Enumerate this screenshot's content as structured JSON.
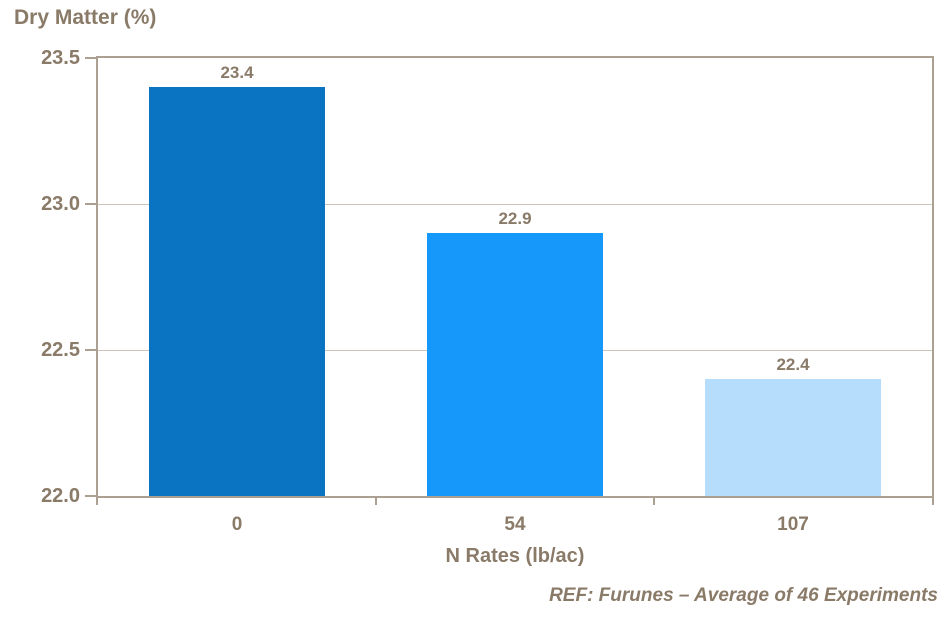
{
  "chart_data": {
    "type": "bar",
    "title": "Dry Matter (%)",
    "xlabel": "N Rates (lb/ac)",
    "ylabel": "Dry Matter (%)",
    "categories": [
      "0",
      "54",
      "107"
    ],
    "values": [
      23.4,
      22.9,
      22.4
    ],
    "data_labels": [
      "23.4",
      "22.9",
      "22.4"
    ],
    "bar_colors": [
      "#0a73c2",
      "#1598fa",
      "#b6defc"
    ],
    "ylim": [
      22.0,
      23.5
    ],
    "ytick_step": 0.5,
    "ytick_labels": [
      "23.5",
      "23.0",
      "22.5",
      "22.0"
    ],
    "grid": true,
    "legend": "none",
    "annotation": "REF: Furunes – Average of 46 Experiments"
  },
  "styles": {
    "text_color": "#8a7a68",
    "axis_color": "#aca092",
    "grid_color": "#ccc4b6",
    "background_color": "#ffffff"
  }
}
